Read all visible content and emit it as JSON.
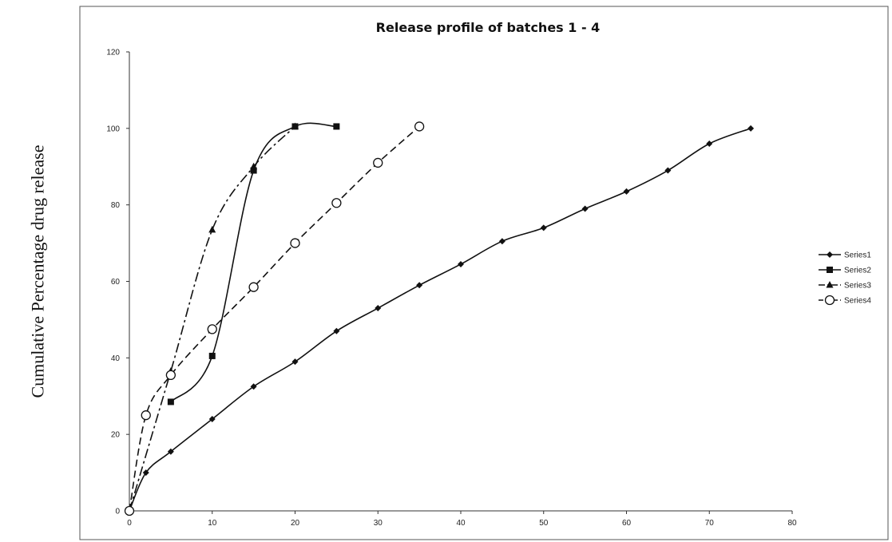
{
  "chart_data": {
    "type": "line",
    "title": "Release profile of batches 1 - 4",
    "ylabel": "Cumulative Percentage drug release",
    "xlabel": "",
    "xlim": [
      0,
      80
    ],
    "ylim": [
      0,
      120
    ],
    "xticks": [
      0,
      10,
      20,
      30,
      40,
      50,
      60,
      70,
      80
    ],
    "yticks": [
      0,
      20,
      40,
      60,
      80,
      100,
      120
    ],
    "grid": false,
    "legend_position": "right",
    "series": [
      {
        "name": "Series1",
        "marker": "diamond",
        "line_style": "solid",
        "color": "#111111",
        "x": [
          0,
          2,
          5,
          10,
          15,
          20,
          25,
          30,
          35,
          40,
          45,
          50,
          55,
          60,
          65,
          70,
          75
        ],
        "y": [
          0,
          10,
          15.5,
          24,
          32.5,
          39,
          47,
          53,
          59,
          64.5,
          70.5,
          74,
          79,
          83.5,
          89,
          96,
          100
        ]
      },
      {
        "name": "Series2",
        "marker": "square",
        "line_style": "solid",
        "color": "#111111",
        "x": [
          5,
          10,
          15,
          20,
          25
        ],
        "y": [
          28.5,
          40.5,
          89,
          100.5,
          100.5
        ]
      },
      {
        "name": "Series3",
        "marker": "triangle",
        "line_style": "dashdot",
        "color": "#111111",
        "x": [
          0,
          5,
          10,
          15,
          20
        ],
        "y": [
          0,
          36.5,
          73.5,
          90,
          100.5
        ]
      },
      {
        "name": "Series4",
        "marker": "circle-open",
        "line_style": "dashed",
        "color": "#111111",
        "x": [
          0,
          2,
          5,
          10,
          15,
          20,
          25,
          30,
          35
        ],
        "y": [
          0,
          25,
          35.5,
          47.5,
          58.5,
          70,
          80.5,
          91,
          100.5
        ]
      }
    ]
  }
}
